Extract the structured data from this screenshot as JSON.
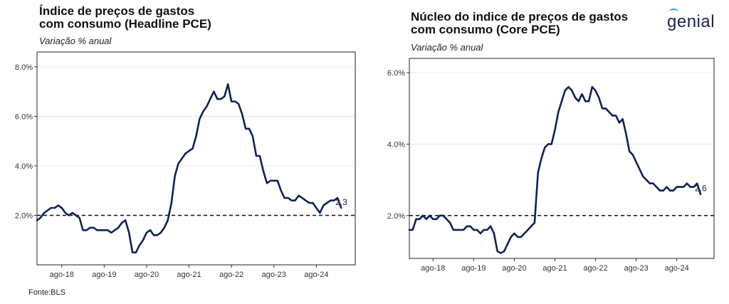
{
  "source": "Fonte:BLS",
  "logo_text": "genial",
  "colors": {
    "line": "#0f2259",
    "reference": "#111111",
    "grid": "#e6e6e6",
    "logo_accent": "#1aa6d6"
  },
  "chart_data": [
    {
      "type": "line",
      "title_line1": "Índice de preços de gastos",
      "title_line2": "com consumo (Headline PCE)",
      "subtitle": "Variação % anual",
      "xlim": [
        2018.0,
        2025.5
      ],
      "ylim": [
        0.0,
        8.6
      ],
      "yticks": [
        2,
        4,
        6,
        8
      ],
      "ytick_labels": [
        "2.0%",
        "4.0%",
        "6.0%",
        "8.0%"
      ],
      "xticks": [
        2018.583,
        2019.583,
        2020.583,
        2021.583,
        2022.583,
        2023.583,
        2024.583
      ],
      "xtick_labels": [
        "ago-18",
        "ago-19",
        "ago-20",
        "ago-21",
        "ago-22",
        "ago-23",
        "ago-24"
      ],
      "reference_line": 2.0,
      "end_label": "2.3",
      "grid": true,
      "series": [
        {
          "x": [
            2018.0,
            2018.083,
            2018.167,
            2018.25,
            2018.333,
            2018.417,
            2018.5,
            2018.583,
            2018.667,
            2018.75,
            2018.833,
            2018.917,
            2019.0,
            2019.083,
            2019.167,
            2019.25,
            2019.333,
            2019.417,
            2019.5,
            2019.583,
            2019.667,
            2019.75,
            2019.833,
            2019.917,
            2020.0,
            2020.083,
            2020.167,
            2020.25,
            2020.333,
            2020.417,
            2020.5,
            2020.583,
            2020.667,
            2020.75,
            2020.833,
            2020.917,
            2021.0,
            2021.083,
            2021.167,
            2021.25,
            2021.333,
            2021.417,
            2021.5,
            2021.583,
            2021.667,
            2021.75,
            2021.833,
            2021.917,
            2022.0,
            2022.083,
            2022.167,
            2022.25,
            2022.333,
            2022.417,
            2022.5,
            2022.583,
            2022.667,
            2022.75,
            2022.833,
            2022.917,
            2023.0,
            2023.083,
            2023.167,
            2023.25,
            2023.333,
            2023.417,
            2023.5,
            2023.583,
            2023.667,
            2023.75,
            2023.833,
            2023.917,
            2024.0,
            2024.083,
            2024.167,
            2024.25,
            2024.333,
            2024.417,
            2024.5,
            2024.583,
            2024.667,
            2024.75,
            2024.833,
            2024.917,
            2025.0,
            2025.083,
            2025.167
          ],
          "y": [
            1.8,
            1.9,
            2.1,
            2.2,
            2.3,
            2.3,
            2.4,
            2.3,
            2.1,
            2.0,
            2.1,
            2.0,
            1.9,
            1.4,
            1.4,
            1.5,
            1.5,
            1.4,
            1.4,
            1.4,
            1.4,
            1.3,
            1.4,
            1.5,
            1.7,
            1.8,
            1.3,
            0.5,
            0.5,
            0.8,
            1.0,
            1.3,
            1.4,
            1.2,
            1.2,
            1.3,
            1.5,
            1.8,
            2.5,
            3.6,
            4.1,
            4.3,
            4.5,
            4.6,
            4.7,
            5.2,
            5.9,
            6.2,
            6.4,
            6.7,
            7.0,
            6.7,
            6.7,
            6.8,
            7.3,
            6.6,
            6.6,
            6.5,
            6.1,
            5.5,
            5.5,
            5.2,
            4.4,
            4.4,
            3.8,
            3.3,
            3.4,
            3.4,
            3.4,
            3.0,
            2.7,
            2.7,
            2.6,
            2.6,
            2.8,
            2.7,
            2.6,
            2.5,
            2.5,
            2.3,
            2.1,
            2.4,
            2.5,
            2.6,
            2.6,
            2.7,
            2.3
          ]
        }
      ]
    },
    {
      "type": "line",
      "title_line1": "Núcleo do indice de preços de gastos",
      "title_line2": "com consumo (Core PCE)",
      "subtitle": "Variação % anual",
      "xlim": [
        2018.0,
        2025.5
      ],
      "ylim": [
        0.8,
        6.4
      ],
      "yticks": [
        2,
        4,
        6
      ],
      "ytick_labels": [
        "2.0%",
        "4.0%",
        "6.0%"
      ],
      "xticks": [
        2018.583,
        2019.583,
        2020.583,
        2021.583,
        2022.583,
        2023.583,
        2024.583
      ],
      "xtick_labels": [
        "ago-18",
        "ago-19",
        "ago-20",
        "ago-21",
        "ago-22",
        "ago-23",
        "ago-24"
      ],
      "reference_line": 2.0,
      "end_label": "2.6",
      "grid": true,
      "series": [
        {
          "x": [
            2018.0,
            2018.083,
            2018.167,
            2018.25,
            2018.333,
            2018.417,
            2018.5,
            2018.583,
            2018.667,
            2018.75,
            2018.833,
            2018.917,
            2019.0,
            2019.083,
            2019.167,
            2019.25,
            2019.333,
            2019.417,
            2019.5,
            2019.583,
            2019.667,
            2019.75,
            2019.833,
            2019.917,
            2020.0,
            2020.083,
            2020.167,
            2020.25,
            2020.333,
            2020.417,
            2020.5,
            2020.583,
            2020.667,
            2020.75,
            2020.833,
            2020.917,
            2021.0,
            2021.083,
            2021.167,
            2021.25,
            2021.333,
            2021.417,
            2021.5,
            2021.583,
            2021.667,
            2021.75,
            2021.833,
            2021.917,
            2022.0,
            2022.083,
            2022.167,
            2022.25,
            2022.333,
            2022.417,
            2022.5,
            2022.583,
            2022.667,
            2022.75,
            2022.833,
            2022.917,
            2023.0,
            2023.083,
            2023.167,
            2023.25,
            2023.333,
            2023.417,
            2023.5,
            2023.583,
            2023.667,
            2023.75,
            2023.833,
            2023.917,
            2024.0,
            2024.083,
            2024.167,
            2024.25,
            2024.333,
            2024.417,
            2024.5,
            2024.583,
            2024.667,
            2024.75,
            2024.833,
            2024.917,
            2025.0,
            2025.083,
            2025.167
          ],
          "y": [
            1.6,
            1.6,
            1.9,
            1.9,
            2.0,
            1.9,
            2.0,
            1.9,
            1.9,
            2.0,
            2.0,
            1.9,
            1.8,
            1.6,
            1.6,
            1.6,
            1.6,
            1.7,
            1.7,
            1.6,
            1.6,
            1.5,
            1.6,
            1.6,
            1.7,
            1.5,
            1.0,
            0.95,
            1.0,
            1.2,
            1.4,
            1.5,
            1.4,
            1.4,
            1.5,
            1.6,
            1.7,
            1.8,
            3.2,
            3.6,
            3.9,
            4.0,
            4.0,
            4.4,
            4.9,
            5.2,
            5.5,
            5.6,
            5.5,
            5.3,
            5.2,
            5.4,
            5.2,
            5.2,
            5.6,
            5.5,
            5.3,
            5.0,
            5.0,
            4.9,
            4.8,
            4.8,
            4.6,
            4.7,
            4.3,
            3.8,
            3.7,
            3.5,
            3.3,
            3.1,
            3.0,
            2.9,
            2.9,
            2.8,
            2.7,
            2.7,
            2.8,
            2.7,
            2.7,
            2.8,
            2.8,
            2.8,
            2.9,
            2.8,
            2.8,
            2.9,
            2.6
          ]
        }
      ]
    }
  ]
}
